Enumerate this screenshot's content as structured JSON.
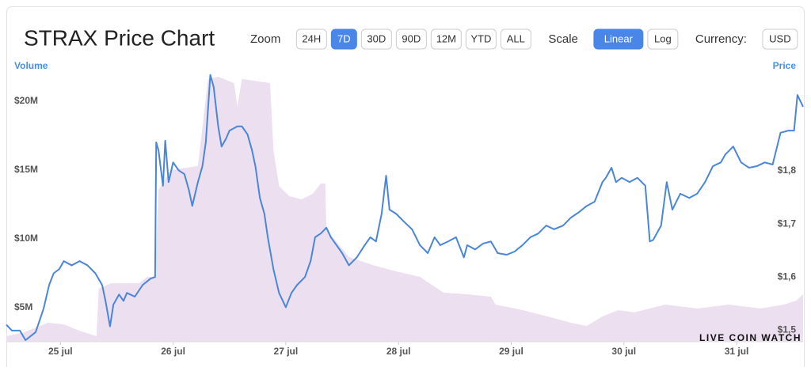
{
  "header": {
    "title": "STRAX Price Chart",
    "zoom_label": "Zoom",
    "zoom_options": [
      "24H",
      "7D",
      "30D",
      "90D",
      "12M",
      "YTD",
      "ALL"
    ],
    "zoom_active": "7D",
    "scale_label": "Scale",
    "scale_options": [
      "Linear",
      "Log"
    ],
    "scale_active": "Linear",
    "currency_label": "Currency:",
    "currency": "USD"
  },
  "watermark": "LIVE COIN WATCH",
  "chart_data": {
    "type": "line",
    "xlim": [
      24.52,
      31.59
    ],
    "xticks": [
      {
        "value": 25,
        "label": "25 jul"
      },
      {
        "value": 26,
        "label": "26 jul"
      },
      {
        "value": 27,
        "label": "27 jul"
      },
      {
        "value": 28,
        "label": "28 jul"
      },
      {
        "value": 29,
        "label": "29 jul"
      },
      {
        "value": 30,
        "label": "30 jul"
      },
      {
        "value": 31,
        "label": "31 jul"
      }
    ],
    "ylim": [
      2.53,
      22.18
    ],
    "yticks": [
      {
        "value": 5,
        "label": "$5M"
      },
      {
        "value": 10,
        "label": "$10M"
      },
      {
        "value": 15,
        "label": "$15M"
      },
      {
        "value": 20,
        "label": "$20M"
      }
    ],
    "y2lim": [
      1.478,
      1.988
    ],
    "y2ticks": [
      {
        "value": 1.5,
        "label": "$1,5"
      },
      {
        "value": 1.6,
        "label": "$1,6"
      },
      {
        "value": 1.7,
        "label": "$1,7"
      },
      {
        "value": 1.8,
        "label": "$1,8"
      }
    ],
    "series": [
      {
        "name": "Volume",
        "type": "area",
        "color": "#ecdff0",
        "label_color": "#4a90e2",
        "x": [
          24.52,
          24.68,
          24.89,
          25.03,
          25.17,
          25.32,
          25.34,
          25.45,
          25.7,
          25.77,
          25.84,
          25.87,
          25.98,
          26.22,
          26.31,
          26.4,
          26.54,
          26.57,
          26.61,
          26.86,
          26.89,
          26.94,
          27.03,
          27.14,
          27.24,
          27.31,
          27.35,
          27.36,
          27.56,
          27.77,
          27.98,
          28.19,
          28.4,
          28.61,
          28.82,
          28.86,
          29.1,
          29.38,
          29.53,
          29.67,
          29.81,
          29.95,
          30.09,
          30.37,
          30.65,
          30.93,
          31.21,
          31.42,
          31.53,
          31.59
        ],
        "values": [
          2.93,
          3.22,
          3.91,
          3.79,
          3.33,
          2.93,
          6.38,
          6.78,
          6.78,
          7.24,
          7.24,
          13.56,
          15.0,
          15.29,
          21.61,
          21.78,
          21.32,
          19.6,
          21.61,
          21.32,
          16.44,
          13.85,
          13.1,
          12.87,
          13.28,
          14.02,
          14.02,
          10.69,
          8.68,
          8.1,
          7.64,
          7.24,
          6.09,
          5.98,
          5.8,
          5.23,
          4.83,
          4.25,
          3.91,
          3.68,
          4.37,
          4.83,
          4.66,
          5.23,
          4.94,
          5.23,
          4.94,
          5.23,
          5.52,
          5.98
        ]
      },
      {
        "name": "Price",
        "axis": "y2",
        "color": "#4a86d8",
        "label_color": "#4a90e2",
        "x": [
          24.52,
          24.57,
          24.64,
          24.69,
          24.78,
          24.85,
          24.9,
          24.94,
          24.99,
          25.03,
          25.1,
          25.17,
          25.24,
          25.31,
          25.37,
          25.4,
          25.44,
          25.47,
          25.52,
          25.56,
          25.59,
          25.66,
          25.73,
          25.8,
          25.84,
          25.85,
          25.87,
          25.91,
          25.93,
          25.96,
          26.0,
          26.05,
          26.1,
          26.14,
          26.17,
          26.22,
          26.26,
          26.29,
          26.33,
          26.36,
          26.4,
          26.43,
          26.47,
          26.5,
          26.57,
          26.61,
          26.66,
          26.7,
          26.73,
          26.77,
          26.81,
          26.84,
          26.89,
          26.94,
          27.0,
          27.05,
          27.1,
          27.17,
          27.22,
          27.26,
          27.31,
          27.36,
          27.4,
          27.45,
          27.5,
          27.56,
          27.63,
          27.7,
          27.75,
          27.8,
          27.85,
          27.89,
          27.92,
          27.98,
          28.05,
          28.12,
          28.19,
          28.26,
          28.32,
          28.37,
          28.44,
          28.51,
          28.58,
          28.61,
          28.68,
          28.75,
          28.82,
          28.88,
          28.96,
          29.03,
          29.1,
          29.17,
          29.24,
          29.31,
          29.38,
          29.46,
          29.53,
          29.6,
          29.67,
          29.74,
          29.81,
          29.84,
          29.89,
          29.93,
          29.98,
          30.05,
          30.12,
          30.19,
          30.23,
          30.26,
          30.33,
          30.38,
          30.43,
          30.5,
          30.58,
          30.65,
          30.72,
          30.79,
          30.86,
          30.9,
          30.97,
          31.04,
          31.11,
          31.18,
          31.25,
          31.32,
          31.39,
          31.46,
          31.51,
          31.54,
          31.59
        ],
        "values": [
          1.51,
          1.499,
          1.499,
          1.481,
          1.496,
          1.54,
          1.585,
          1.607,
          1.615,
          1.63,
          1.622,
          1.63,
          1.622,
          1.607,
          1.585,
          1.555,
          1.507,
          1.548,
          1.567,
          1.555,
          1.57,
          1.563,
          1.585,
          1.597,
          1.6,
          1.854,
          1.839,
          1.772,
          1.857,
          1.779,
          1.816,
          1.801,
          1.794,
          1.764,
          1.734,
          1.779,
          1.809,
          1.854,
          1.981,
          1.958,
          1.884,
          1.846,
          1.861,
          1.876,
          1.884,
          1.884,
          1.869,
          1.839,
          1.809,
          1.749,
          1.719,
          1.675,
          1.615,
          1.57,
          1.543,
          1.57,
          1.585,
          1.6,
          1.63,
          1.675,
          1.682,
          1.693,
          1.675,
          1.66,
          1.645,
          1.622,
          1.637,
          1.66,
          1.675,
          1.667,
          1.719,
          1.791,
          1.727,
          1.719,
          1.704,
          1.69,
          1.66,
          1.645,
          1.675,
          1.66,
          1.667,
          1.675,
          1.637,
          1.66,
          1.652,
          1.663,
          1.667,
          1.645,
          1.642,
          1.648,
          1.66,
          1.675,
          1.682,
          1.697,
          1.69,
          1.697,
          1.712,
          1.722,
          1.734,
          1.742,
          1.779,
          1.787,
          1.806,
          1.779,
          1.787,
          1.779,
          1.787,
          1.772,
          1.667,
          1.67,
          1.697,
          1.779,
          1.727,
          1.757,
          1.749,
          1.757,
          1.779,
          1.809,
          1.816,
          1.831,
          1.846,
          1.816,
          1.806,
          1.809,
          1.816,
          1.812,
          1.872,
          1.876,
          1.876,
          1.943,
          1.921
        ]
      }
    ]
  }
}
